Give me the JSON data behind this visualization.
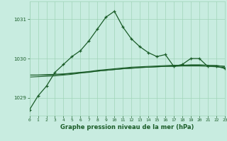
{
  "title": "Graphe pression niveau de la mer (hPa)",
  "background_color": "#c8ece0",
  "grid_color": "#a0d4b8",
  "line_color": "#1a5c28",
  "x_ticks": [
    0,
    1,
    2,
    3,
    4,
    5,
    6,
    7,
    8,
    9,
    10,
    11,
    12,
    13,
    14,
    15,
    16,
    17,
    18,
    19,
    20,
    21,
    22,
    23
  ],
  "y_ticks": [
    1029,
    1030,
    1031
  ],
  "ylim": [
    1028.55,
    1031.45
  ],
  "xlim": [
    0,
    23
  ],
  "main_series": [
    1028.7,
    1029.05,
    1029.3,
    1029.65,
    1029.85,
    1030.05,
    1030.2,
    1030.45,
    1030.75,
    1031.05,
    1031.2,
    1030.8,
    1030.5,
    1030.3,
    1030.15,
    1030.05,
    1030.1,
    1029.8,
    1029.85,
    1030.0,
    1030.0,
    1029.8,
    1029.8,
    1029.75
  ],
  "smooth_series1": [
    1029.58,
    1029.58,
    1029.58,
    1029.59,
    1029.6,
    1029.62,
    1029.64,
    1029.66,
    1029.68,
    1029.7,
    1029.72,
    1029.74,
    1029.76,
    1029.77,
    1029.78,
    1029.79,
    1029.8,
    1029.81,
    1029.82,
    1029.83,
    1029.83,
    1029.83,
    1029.82,
    1029.8
  ],
  "smooth_series2": [
    1029.53,
    1029.54,
    1029.55,
    1029.56,
    1029.58,
    1029.6,
    1029.63,
    1029.65,
    1029.68,
    1029.7,
    1029.72,
    1029.74,
    1029.75,
    1029.77,
    1029.78,
    1029.79,
    1029.8,
    1029.8,
    1029.81,
    1029.81,
    1029.81,
    1029.8,
    1029.79,
    1029.77
  ],
  "smooth_series3": [
    1029.58,
    1029.58,
    1029.59,
    1029.6,
    1029.61,
    1029.63,
    1029.65,
    1029.67,
    1029.7,
    1029.72,
    1029.74,
    1029.76,
    1029.78,
    1029.79,
    1029.8,
    1029.81,
    1029.82,
    1029.83,
    1029.83,
    1029.84,
    1029.84,
    1029.83,
    1029.82,
    1029.8
  ]
}
